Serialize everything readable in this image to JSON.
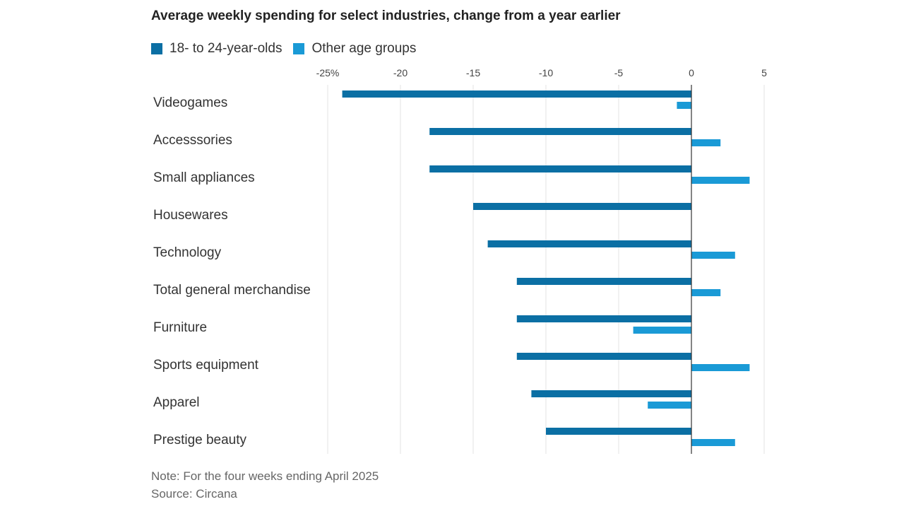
{
  "chart_data": {
    "type": "bar",
    "orientation": "horizontal",
    "title": "Average weekly spending for select industries, change from a year earlier",
    "categories": [
      "Videogames",
      "Accesssories",
      "Small appliances",
      "Housewares",
      "Technology",
      "Total general merchandise",
      "Furniture",
      "Sports equipment",
      "Apparel",
      "Prestige beauty"
    ],
    "series": [
      {
        "name": "18- to 24-year-olds",
        "color": "#0b6fa4",
        "values": [
          -24,
          -18,
          -18,
          -15,
          -14,
          -12,
          -12,
          -12,
          -11,
          -10
        ]
      },
      {
        "name": "Other age groups",
        "color": "#1a9ad6",
        "values": [
          -1,
          2,
          4,
          null,
          3,
          2,
          -4,
          4,
          -3,
          3
        ]
      }
    ],
    "xlim": [
      -25,
      5
    ],
    "ticks": [
      -25,
      -20,
      -15,
      -10,
      -5,
      0,
      5
    ],
    "tick_labels": [
      "-25%",
      "-20",
      "-15",
      "-10",
      "-5",
      "0",
      "5"
    ],
    "grid": true,
    "legend_position": "top-left"
  },
  "note": "Note: For the four weeks ending April 2025",
  "source": "Source: Circana"
}
